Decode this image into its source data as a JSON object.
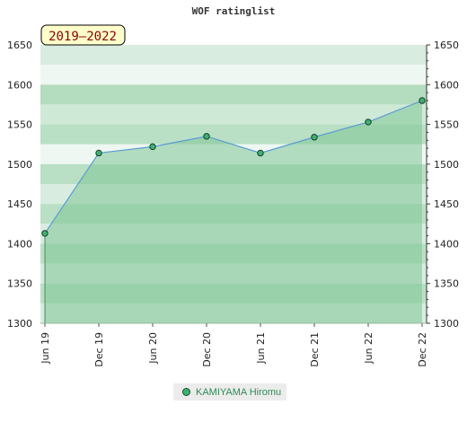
{
  "chart_data": {
    "type": "area",
    "title": "WOF ratinglist",
    "period_label": "2019–2022",
    "x": [
      "Jun 19",
      "Dec 19",
      "Jun 20",
      "Dec 20",
      "Jun 21",
      "Dec 21",
      "Jun 22",
      "Dec 22"
    ],
    "series": [
      {
        "name": "KAMIYAMA Hiromu",
        "values": [
          1413,
          1514,
          1522,
          1535,
          1514,
          1534,
          1553,
          1580
        ]
      }
    ],
    "ylim": [
      1300,
      1650
    ],
    "yticks": [
      1300,
      1350,
      1400,
      1450,
      1500,
      1550,
      1600,
      1650
    ],
    "xlabel": "",
    "ylabel": "",
    "grid": true,
    "legend_position": "bottom-center",
    "colors": {
      "line": "#5b9bd5",
      "area": "#7fc796",
      "marker": "#3cb371",
      "label_bg": "#ffffcc"
    }
  }
}
